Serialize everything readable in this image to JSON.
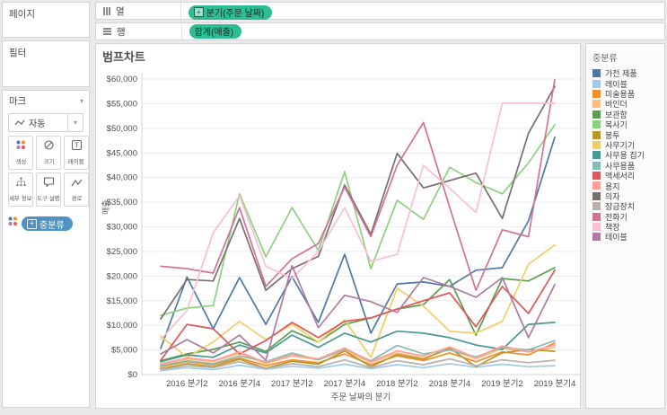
{
  "left_panel": {
    "pages": {
      "title": "페이지"
    },
    "filters": {
      "title": "필터"
    },
    "marks": {
      "title": "마크",
      "mark_type": "자동",
      "buttons": [
        {
          "label": "색상",
          "icon": "color-dots-icon"
        },
        {
          "label": "크기",
          "icon": "size-icon"
        },
        {
          "label": "레이블",
          "icon": "label-icon"
        },
        {
          "label": "세부 정보",
          "icon": "detail-icon"
        },
        {
          "label": "도구 설명",
          "icon": "tooltip-icon"
        },
        {
          "label": "경로",
          "icon": "path-icon"
        }
      ],
      "color_pill": {
        "label": "중분류"
      }
    }
  },
  "shelves": {
    "columns": {
      "label": "열",
      "pill": "분기(주문 날짜)"
    },
    "rows": {
      "label": "행",
      "pill": "합계(매출)"
    }
  },
  "sheet": {
    "title": "범프차트"
  },
  "legend": {
    "title": "중분류"
  },
  "colors": {
    "pill_green": "#2cbd92",
    "pill_blue": "#4e93c4",
    "grid": "#ebebeb",
    "axis": "#d6d6d6",
    "tick_text": "#4f4f4f"
  },
  "chart_data": {
    "type": "line",
    "x": [
      "2016 분기1",
      "2016 분기2",
      "2016 분기3",
      "2016 분기4",
      "2017 분기1",
      "2017 분기2",
      "2017 분기3",
      "2017 분기4",
      "2018 분기1",
      "2018 분기2",
      "2018 분기3",
      "2018 분기4",
      "2019 분기1",
      "2019 분기2",
      "2019 분기3",
      "2019 분기4"
    ],
    "x_tick_labels": [
      "2016 분기2",
      "2016 분기4",
      "2017 분기2",
      "2017 분기4",
      "2018 분기2",
      "2018 분기4",
      "2019 분기2",
      "2019 분기4"
    ],
    "xlabel": "주문 날짜의 분기",
    "ylabel": "매출",
    "ylim": [
      0,
      60000
    ],
    "ytick_step": 5000,
    "grid": true,
    "legend_position": "right",
    "series": [
      {
        "name": "가전 제품",
        "color": "#4E79A7",
        "values": [
          5300,
          19800,
          9300,
          19700,
          10200,
          19900,
          10600,
          24400,
          8400,
          18400,
          18800,
          17900,
          21200,
          21700,
          31200,
          48200
        ]
      },
      {
        "name": "레이블",
        "color": "#A0CBE8",
        "values": [
          800,
          1400,
          1000,
          1900,
          1100,
          1700,
          1300,
          2100,
          1200,
          2000,
          1400,
          2200,
          1500,
          2100,
          1600,
          1800
        ]
      },
      {
        "name": "미술용품",
        "color": "#F28E2B",
        "values": [
          1600,
          2600,
          2000,
          3400,
          1800,
          3000,
          2400,
          4200,
          2000,
          3800,
          2800,
          4400,
          2600,
          4600,
          4000,
          6400
        ]
      },
      {
        "name": "바인더",
        "color": "#FFBE7D",
        "values": [
          2100,
          3200,
          2600,
          4300,
          2200,
          3800,
          3000,
          4900,
          2400,
          4400,
          3400,
          5100,
          3200,
          5300,
          4600,
          5500
        ]
      },
      {
        "name": "보관함",
        "color": "#59A14F",
        "values": [
          2800,
          4200,
          5100,
          6600,
          4700,
          8900,
          6600,
          10200,
          11500,
          13300,
          14200,
          19300,
          8000,
          19500,
          19000,
          21700
        ]
      },
      {
        "name": "복사기",
        "color": "#8CD17D",
        "values": [
          12000,
          13500,
          14000,
          36700,
          23900,
          33900,
          25200,
          41200,
          21500,
          35400,
          31500,
          42100,
          39000,
          36700,
          43000,
          50700
        ]
      },
      {
        "name": "봉투",
        "color": "#B6992D",
        "values": [
          1200,
          2200,
          1600,
          3100,
          1300,
          2700,
          2100,
          4800,
          1600,
          4100,
          3100,
          5400,
          1600,
          4400,
          5100,
          4700
        ]
      },
      {
        "name": "사무기기",
        "color": "#F1CE63",
        "values": [
          7800,
          3500,
          6600,
          10800,
          7100,
          10200,
          6600,
          11100,
          3500,
          17500,
          13900,
          8800,
          8400,
          10800,
          22400,
          26300
        ]
      },
      {
        "name": "사무용 집기",
        "color": "#499894",
        "values": [
          2600,
          4000,
          3500,
          6000,
          4400,
          8000,
          5500,
          8400,
          6600,
          8800,
          8400,
          7500,
          6000,
          5100,
          10200,
          10600
        ]
      },
      {
        "name": "사무용품",
        "color": "#86BCB6",
        "values": [
          1800,
          2800,
          2200,
          3800,
          2600,
          4400,
          3000,
          5200,
          2800,
          5900,
          4200,
          5000,
          3600,
          5500,
          5000,
          6900
        ]
      },
      {
        "name": "액세서리",
        "color": "#E15759",
        "values": [
          2900,
          10200,
          9300,
          4200,
          6900,
          10600,
          7500,
          10800,
          11500,
          13300,
          15000,
          16600,
          9700,
          17900,
          12400,
          21200
        ]
      },
      {
        "name": "용지",
        "color": "#FF9D9A",
        "values": [
          2200,
          3400,
          2800,
          4600,
          2400,
          4000,
          3200,
          5400,
          2600,
          4800,
          3800,
          5600,
          3400,
          5800,
          4600,
          6000
        ]
      },
      {
        "name": "의자",
        "color": "#79706E",
        "values": [
          11300,
          19300,
          19000,
          31700,
          17100,
          21500,
          24000,
          38500,
          28500,
          44900,
          37900,
          39400,
          40900,
          31700,
          49000,
          58500
        ]
      },
      {
        "name": "잠금장치",
        "color": "#BAB0AC",
        "values": [
          1000,
          1800,
          1400,
          2600,
          1200,
          2200,
          1600,
          3000,
          1400,
          2800,
          2000,
          3200,
          1800,
          3000,
          2400,
          2900
        ]
      },
      {
        "name": "전화기",
        "color": "#D37295",
        "values": [
          22000,
          21500,
          20600,
          33900,
          17900,
          23500,
          26600,
          38100,
          28000,
          42500,
          51200,
          34000,
          17100,
          29400,
          28000,
          59900
        ]
      },
      {
        "name": "책장",
        "color": "#FABFD2",
        "values": [
          7100,
          13000,
          28800,
          36300,
          22000,
          19500,
          25000,
          33900,
          23000,
          24400,
          42500,
          37800,
          32900,
          55100,
          55100,
          55100
        ]
      },
      {
        "name": "테이블",
        "color": "#B07AA1",
        "values": [
          4200,
          7100,
          4400,
          8000,
          2900,
          22100,
          9500,
          16100,
          14800,
          12600,
          19700,
          17900,
          15700,
          19700,
          7500,
          18300
        ]
      }
    ]
  }
}
